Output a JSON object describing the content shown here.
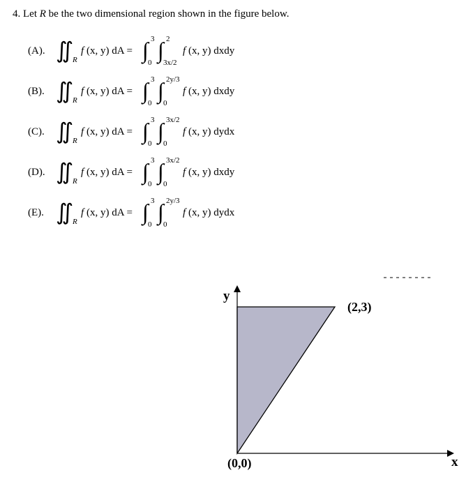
{
  "question_number": "4.",
  "question_text": "Let  R  be the two dimensional region shown in the figure below.",
  "question_text_plain_prefix": "Let ",
  "question_text_plain_mid": " be the two dimensional region shown in the figure below.",
  "region_sym": "R",
  "options": {
    "A": {
      "label": "(A).",
      "outer_lo": "0",
      "outer_hi": "3",
      "inner_lo": "3x/2",
      "inner_hi": "2",
      "order": "dxdy"
    },
    "B": {
      "label": "(B).",
      "outer_lo": "0",
      "outer_hi": "3",
      "inner_lo": "0",
      "inner_hi": "2y/3",
      "order": "dxdy"
    },
    "C": {
      "label": "(C).",
      "outer_lo": "0",
      "outer_hi": "3",
      "inner_lo": "0",
      "inner_hi": "3x/2",
      "order": "dydx"
    },
    "D": {
      "label": "(D).",
      "outer_lo": "0",
      "outer_hi": "3",
      "inner_lo": "0",
      "inner_hi": "3x/2",
      "order": "dxdy"
    },
    "E": {
      "label": "(E).",
      "outer_lo": "0",
      "outer_hi": "3",
      "inner_lo": "0",
      "inner_hi": "2y/3",
      "order": "dydx"
    }
  },
  "figure": {
    "x_label": "x",
    "y_label": "y",
    "origin_label": "(0,0)",
    "vertex_label": "(2,3)",
    "triangle": {
      "p0": [
        0,
        0
      ],
      "p1": [
        2,
        3
      ],
      "p2": [
        0,
        3
      ]
    },
    "colors": {
      "fill": "#b7b7ca",
      "stroke": "#000000",
      "bg": "#ffffff",
      "text": "#000000",
      "dash": "#000000"
    },
    "axis": {
      "x_range": [
        0,
        3.4
      ],
      "y_range": [
        0,
        3.5
      ]
    }
  },
  "math_color": "#000000"
}
